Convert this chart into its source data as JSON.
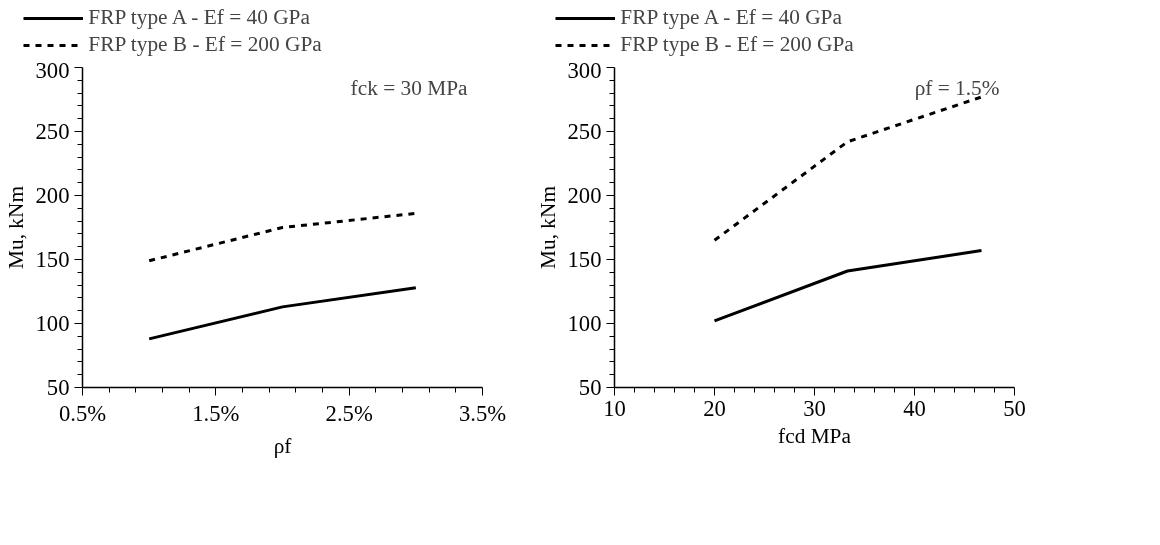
{
  "chart_data": [
    {
      "type": "line",
      "xlabel": "ρf",
      "ylabel": "Mu, kNm",
      "annotations": [
        "fck = 30 MPa"
      ],
      "x": [
        1,
        2,
        3
      ],
      "series": [
        {
          "name": "FRP type A - Ef = 40 GPa",
          "color": "#000000",
          "line_style": "solid",
          "values": [
            88,
            113,
            128
          ]
        },
        {
          "name": "FRP type B - Ef = 200 GPa",
          "color": "#000000",
          "line_style": "dashed",
          "values": [
            149,
            175,
            186
          ]
        }
      ],
      "xlim": [
        0.5,
        3.5
      ],
      "xticks": [
        {
          "value": 0.5,
          "label": "0.5%"
        },
        {
          "value": 1.5,
          "label": "1.5%"
        },
        {
          "value": 2.5,
          "label": "2.5%"
        },
        {
          "value": 3.5,
          "label": "3.5%"
        }
      ],
      "ylim": [
        50,
        300
      ],
      "yticks": [
        50,
        100,
        150,
        200,
        250,
        300
      ],
      "grid": false,
      "legend": "top",
      "marker": "none"
    },
    {
      "type": "line",
      "xlabel": "fcd MPa",
      "ylabel": "Mu, kNm",
      "annotations": [
        "ρf = 1.5%"
      ],
      "x": [
        20,
        33.3,
        46.7
      ],
      "series": [
        {
          "name": "FRP type A - Ef = 40 GPa",
          "color": "#000000",
          "line_style": "solid",
          "values": [
            102,
            141,
            157
          ]
        },
        {
          "name": "FRP type B - Ef = 200 GPa",
          "color": "#000000",
          "line_style": "dashed",
          "values": [
            165,
            242,
            277
          ]
        }
      ],
      "xlim": [
        10,
        50
      ],
      "xticks": [
        10,
        20,
        30,
        40,
        50
      ],
      "ylim": [
        50,
        300
      ],
      "yticks": [
        50,
        100,
        150,
        200,
        250,
        300
      ],
      "grid": false,
      "legend": "top",
      "marker": "none"
    }
  ]
}
